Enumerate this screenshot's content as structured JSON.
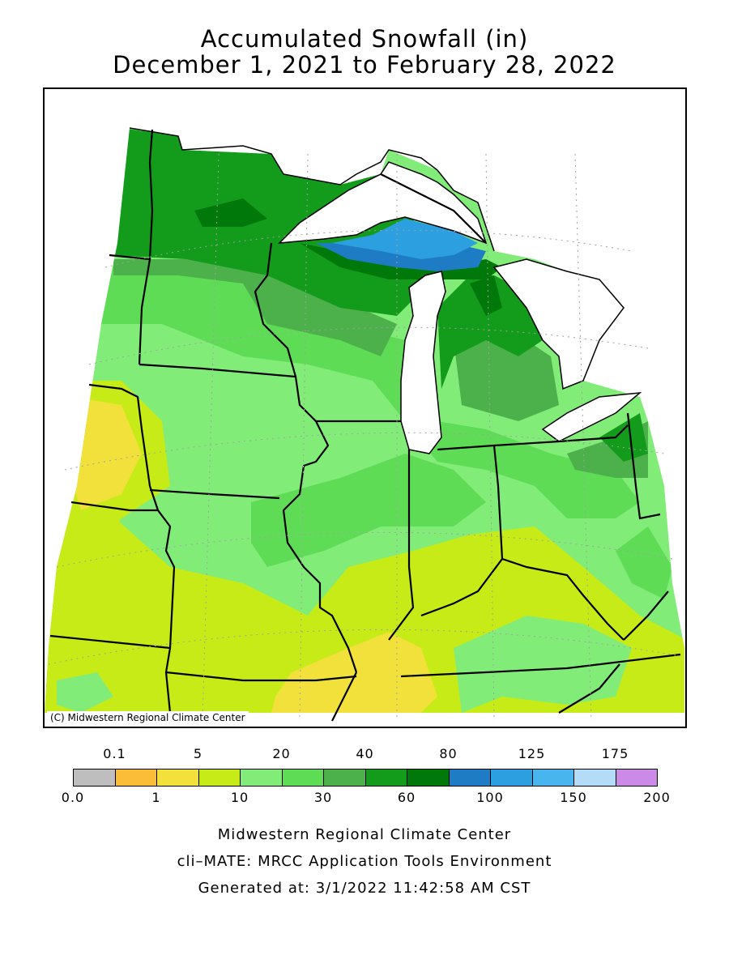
{
  "title": {
    "line1": "Accumulated Snowfall (in)",
    "line2": "December 1, 2021 to February 28, 2022"
  },
  "map": {
    "credit": "(C) Midwestern Regional Climate Center",
    "colors": {
      "lake": "#ffffff",
      "range_10_20": "#82ec78",
      "range_20_30": "#5fdc55",
      "range_30_40": "#4cb14b",
      "range_40_60": "#139b1c",
      "range_60_80": "#00780a",
      "range_80_100": "#1d7cc4",
      "range_100_125": "#2c9fe0",
      "range_5_10": "#c7eb16",
      "range_1_5": "#f1e13a"
    }
  },
  "legend": {
    "top_labels": [
      "0.1",
      "5",
      "20",
      "40",
      "80",
      "125",
      "175"
    ],
    "bottom_labels": [
      "0.0",
      "1",
      "10",
      "30",
      "60",
      "100",
      "150",
      "200"
    ],
    "colors": [
      "#bebebe",
      "#fbbc38",
      "#f1e13a",
      "#c7eb16",
      "#82ec78",
      "#5fdc55",
      "#4cb14b",
      "#139b1c",
      "#00780a",
      "#1d7cc4",
      "#2c9fe0",
      "#48b5ee",
      "#b4dcf8",
      "#cc8ae8"
    ]
  },
  "footer": {
    "line1": "Midwestern Regional Climate Center",
    "line2": "cli–MATE: MRCC Application Tools Environment",
    "line3": "Generated at: 3/1/2022 11:42:58 AM CST"
  }
}
